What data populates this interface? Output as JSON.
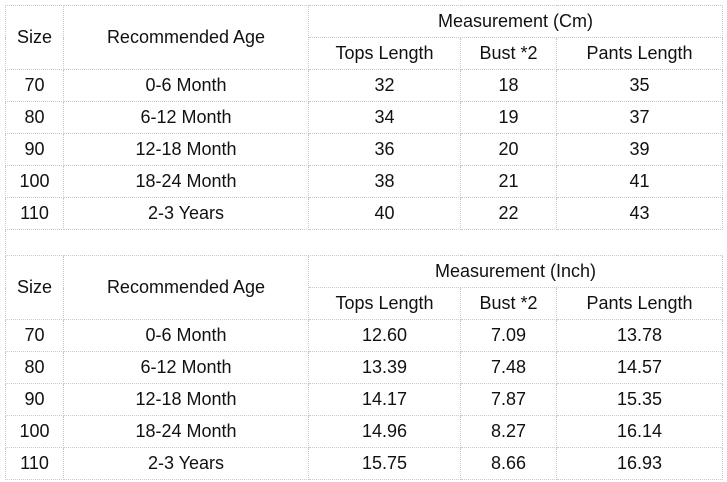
{
  "tables": [
    {
      "headers": {
        "size": "Size",
        "age": "Recommended Age",
        "measurement": "Measurement (Cm)",
        "tops": "Tops Length",
        "bust": "Bust *2",
        "pants": "Pants Length"
      },
      "rows": [
        [
          "70",
          "0-6 Month",
          "32",
          "18",
          "35"
        ],
        [
          "80",
          "6-12 Month",
          "34",
          "19",
          "37"
        ],
        [
          "90",
          "12-18 Month",
          "36",
          "20",
          "39"
        ],
        [
          "100",
          "18-24 Month",
          "38",
          "21",
          "41"
        ],
        [
          "110",
          "2-3 Years",
          "40",
          "22",
          "43"
        ]
      ]
    },
    {
      "headers": {
        "size": "Size",
        "age": "Recommended Age",
        "measurement": "Measurement (Inch)",
        "tops": "Tops Length",
        "bust": "Bust *2",
        "pants": "Pants Length"
      },
      "rows": [
        [
          "70",
          "0-6 Month",
          "12.60",
          "7.09",
          "13.78"
        ],
        [
          "80",
          "6-12 Month",
          "13.39",
          "7.48",
          "14.57"
        ],
        [
          "90",
          "12-18 Month",
          "14.17",
          "7.87",
          "15.35"
        ],
        [
          "100",
          "18-24 Month",
          "14.96",
          "8.27",
          "16.14"
        ],
        [
          "110",
          "2-3 Years",
          "15.75",
          "8.66",
          "16.93"
        ]
      ]
    }
  ]
}
